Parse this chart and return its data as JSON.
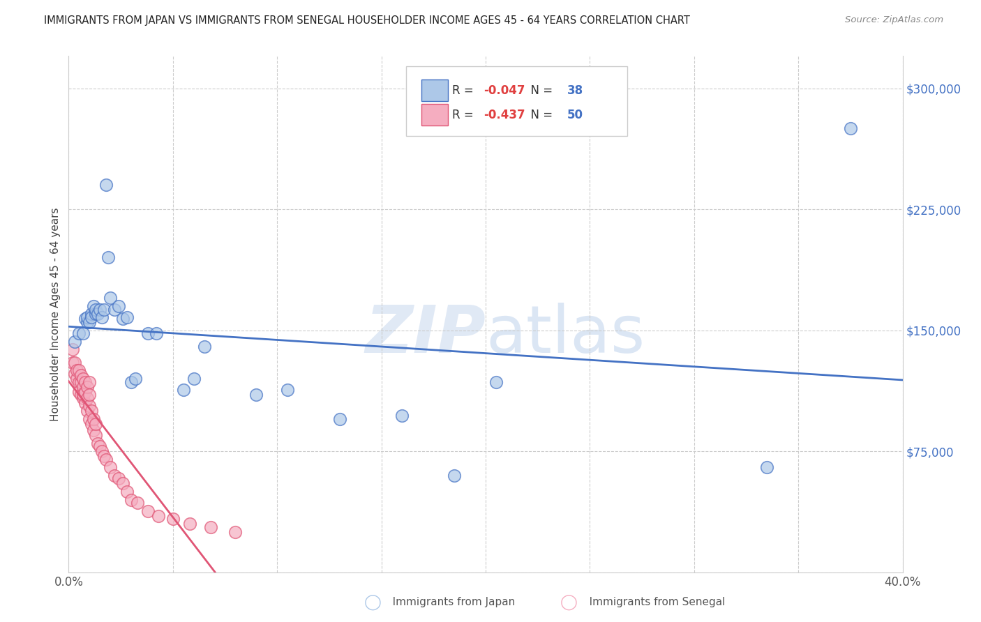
{
  "title": "IMMIGRANTS FROM JAPAN VS IMMIGRANTS FROM SENEGAL HOUSEHOLDER INCOME AGES 45 - 64 YEARS CORRELATION CHART",
  "source": "Source: ZipAtlas.com",
  "ylabel": "Householder Income Ages 45 - 64 years",
  "xlim": [
    0.0,
    0.4
  ],
  "ylim": [
    0,
    320000
  ],
  "xticks": [
    0.0,
    0.05,
    0.1,
    0.15,
    0.2,
    0.25,
    0.3,
    0.35,
    0.4
  ],
  "yticks": [
    0,
    75000,
    150000,
    225000,
    300000
  ],
  "japan_R": "-0.047",
  "japan_N": "38",
  "senegal_R": "-0.437",
  "senegal_N": "50",
  "japan_color": "#adc8e8",
  "senegal_color": "#f5adc0",
  "japan_line_color": "#4472c4",
  "senegal_line_color": "#e05575",
  "japan_scatter_x": [
    0.003,
    0.005,
    0.007,
    0.008,
    0.009,
    0.009,
    0.01,
    0.011,
    0.011,
    0.012,
    0.013,
    0.013,
    0.014,
    0.015,
    0.016,
    0.017,
    0.018,
    0.019,
    0.02,
    0.022,
    0.024,
    0.026,
    0.028,
    0.03,
    0.032,
    0.038,
    0.042,
    0.055,
    0.06,
    0.065,
    0.09,
    0.105,
    0.13,
    0.16,
    0.185,
    0.205,
    0.335,
    0.375
  ],
  "japan_scatter_y": [
    143000,
    148000,
    148000,
    157000,
    155000,
    158000,
    155000,
    160000,
    158000,
    165000,
    160000,
    163000,
    160000,
    163000,
    158000,
    163000,
    240000,
    195000,
    170000,
    163000,
    165000,
    157000,
    158000,
    118000,
    120000,
    148000,
    148000,
    113000,
    120000,
    140000,
    110000,
    113000,
    95000,
    97000,
    60000,
    118000,
    65000,
    275000
  ],
  "senegal_scatter_x": [
    0.002,
    0.002,
    0.003,
    0.003,
    0.004,
    0.004,
    0.005,
    0.005,
    0.005,
    0.006,
    0.006,
    0.006,
    0.007,
    0.007,
    0.007,
    0.007,
    0.008,
    0.008,
    0.008,
    0.009,
    0.009,
    0.009,
    0.01,
    0.01,
    0.01,
    0.01,
    0.011,
    0.011,
    0.012,
    0.012,
    0.013,
    0.013,
    0.014,
    0.015,
    0.016,
    0.017,
    0.018,
    0.02,
    0.022,
    0.024,
    0.026,
    0.028,
    0.03,
    0.033,
    0.038,
    0.043,
    0.05,
    0.058,
    0.068,
    0.08
  ],
  "senegal_scatter_y": [
    138000,
    130000,
    130000,
    123000,
    120000,
    125000,
    118000,
    112000,
    125000,
    110000,
    118000,
    122000,
    108000,
    115000,
    120000,
    110000,
    105000,
    112000,
    118000,
    100000,
    108000,
    115000,
    95000,
    103000,
    110000,
    118000,
    92000,
    100000,
    88000,
    95000,
    85000,
    92000,
    80000,
    78000,
    75000,
    72000,
    70000,
    65000,
    60000,
    58000,
    55000,
    50000,
    45000,
    43000,
    38000,
    35000,
    33000,
    30000,
    28000,
    25000
  ],
  "watermark_zip": "ZIP",
  "watermark_atlas": "atlas",
  "background_color": "#ffffff",
  "grid_color": "#cccccc",
  "legend_label_japan": "Immigrants from Japan",
  "legend_label_senegal": "Immigrants from Senegal"
}
